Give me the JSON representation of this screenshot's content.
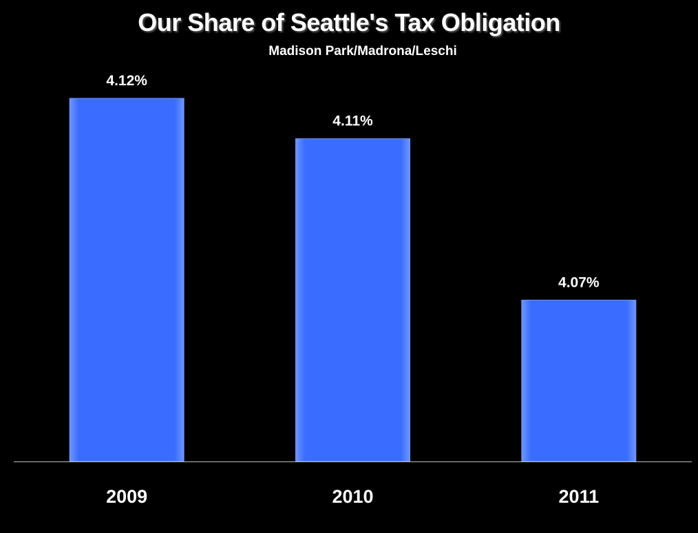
{
  "colors": {
    "background": "#000000",
    "bar": "#3a6dff",
    "bar_edge": "#6f95ff",
    "text": "#ffffff",
    "axis": "#c0c0c0"
  },
  "chart_data": {
    "type": "bar",
    "title": "Our Share of Seattle's Tax Obligation",
    "subtitle": "Madison Park/Madrona/Leschi",
    "categories": [
      "2009",
      "2010",
      "2011"
    ],
    "values": [
      4.12,
      4.11,
      4.07
    ],
    "value_labels": [
      "4.12%",
      "4.11%",
      "4.07%"
    ],
    "unit": "%",
    "xlabel": "",
    "ylabel": "",
    "ylim": [
      4.03,
      4.12
    ],
    "grid": false,
    "legend": "none"
  }
}
